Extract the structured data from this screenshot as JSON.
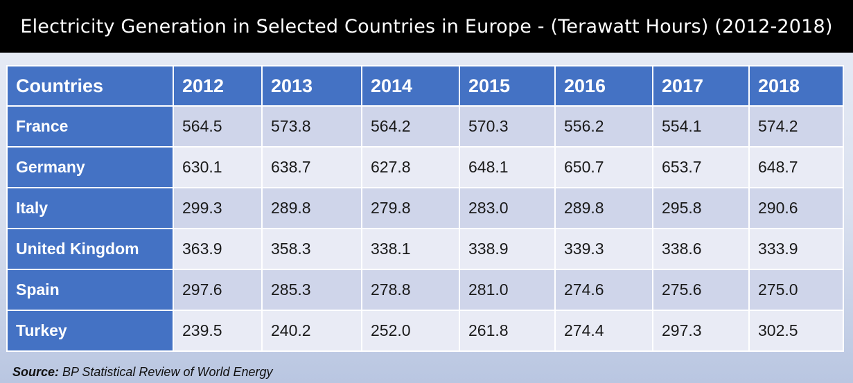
{
  "title": "Electricity Generation in Selected Countries in Europe - (Terawatt Hours) (2012-2018)",
  "source": {
    "label": "Source:",
    "text": "BP Statistical Review of World Energy"
  },
  "colors": {
    "header_bg": "#4472c4",
    "row_odd": "#cfd5ea",
    "row_even": "#e9ebf5",
    "title_bg": "#000000"
  },
  "chart_data": {
    "type": "table",
    "title": "Electricity Generation in Selected Countries in Europe - (Terawatt Hours) (2012-2018)",
    "columns": [
      "Countries",
      "2012",
      "2013",
      "2014",
      "2015",
      "2016",
      "2017",
      "2018"
    ],
    "rows": [
      {
        "country": "France",
        "values": [
          "564.5",
          "573.8",
          "564.2",
          "570.3",
          "556.2",
          "554.1",
          "574.2"
        ]
      },
      {
        "country": "Germany",
        "values": [
          "630.1",
          "638.7",
          "627.8",
          "648.1",
          "650.7",
          "653.7",
          "648.7"
        ]
      },
      {
        "country": "Italy",
        "values": [
          "299.3",
          "289.8",
          "279.8",
          "283.0",
          "289.8",
          "295.8",
          "290.6"
        ]
      },
      {
        "country": "United Kingdom",
        "values": [
          "363.9",
          "358.3",
          "338.1",
          "338.9",
          "339.3",
          "338.6",
          "333.9"
        ]
      },
      {
        "country": "Spain",
        "values": [
          "297.6",
          "285.3",
          "278.8",
          "281.0",
          "274.6",
          "275.6",
          "275.0"
        ]
      },
      {
        "country": "Turkey",
        "values": [
          "239.5",
          "240.2",
          "252.0",
          "261.8",
          "274.4",
          "297.3",
          "302.5"
        ]
      }
    ]
  }
}
